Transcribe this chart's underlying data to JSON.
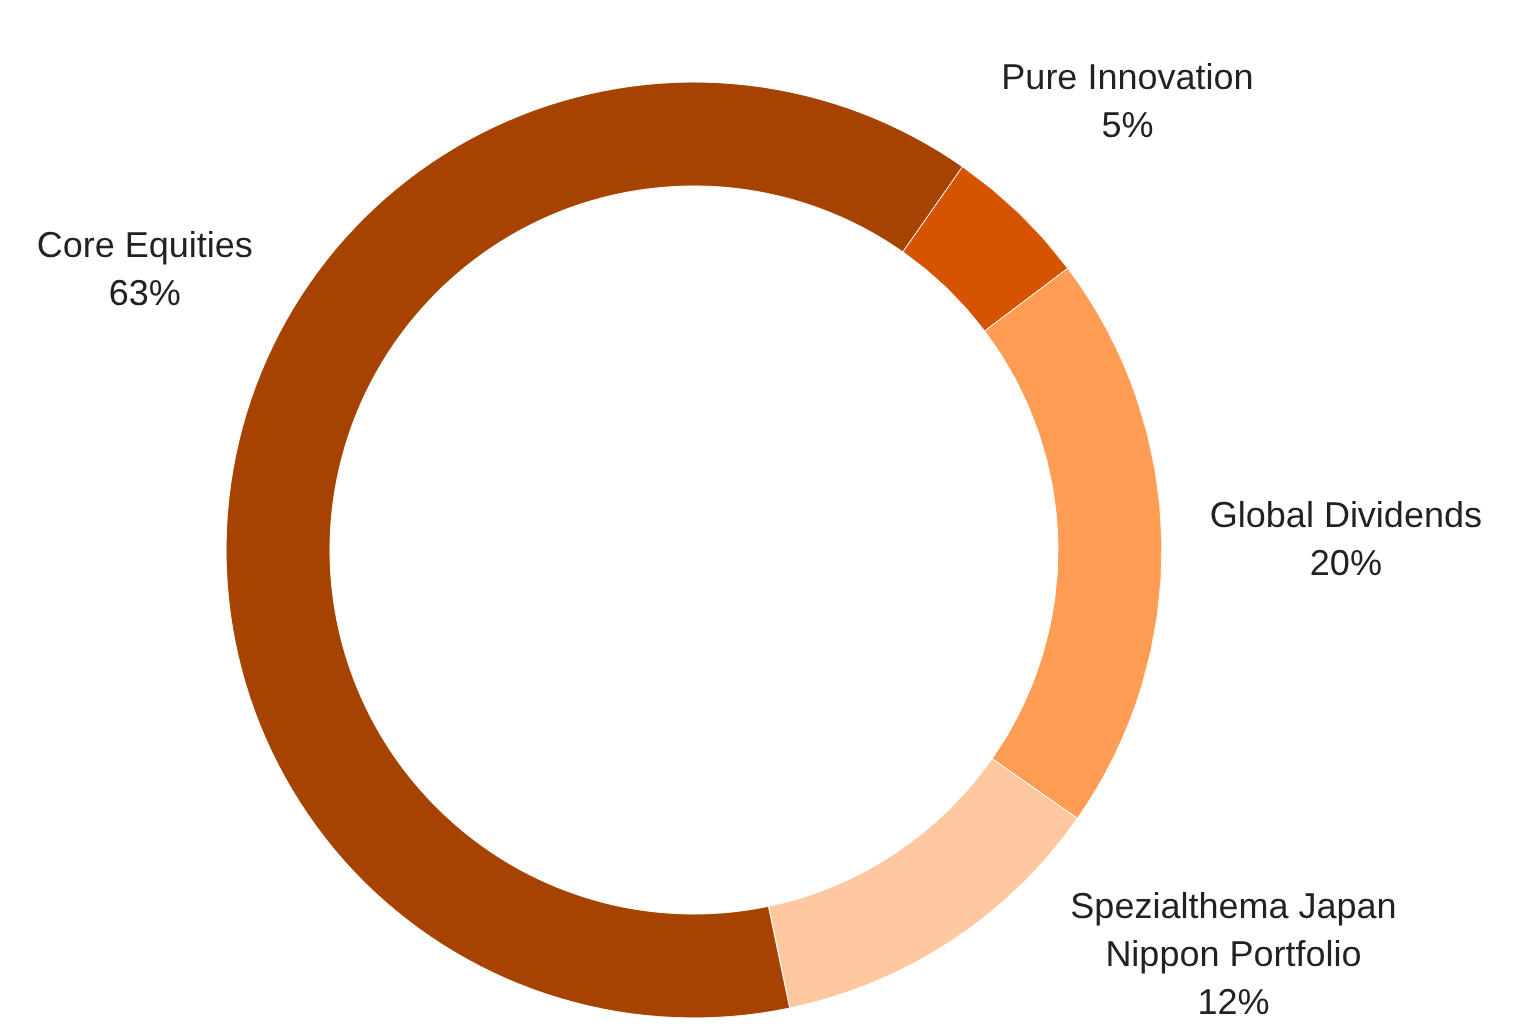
{
  "chart_data": {
    "type": "donut",
    "categories": [
      "Pure Innovation",
      "Global Dividends",
      "Spezialthema Japan Nippon Portfolio",
      "Core Equities"
    ],
    "values": [
      5,
      20,
      12,
      63
    ],
    "value_labels": [
      "5%",
      "20%",
      "12%",
      "63%"
    ],
    "colors": [
      "#d65400",
      "#ff9d55",
      "#ffc89e",
      "#a64300"
    ]
  }
}
